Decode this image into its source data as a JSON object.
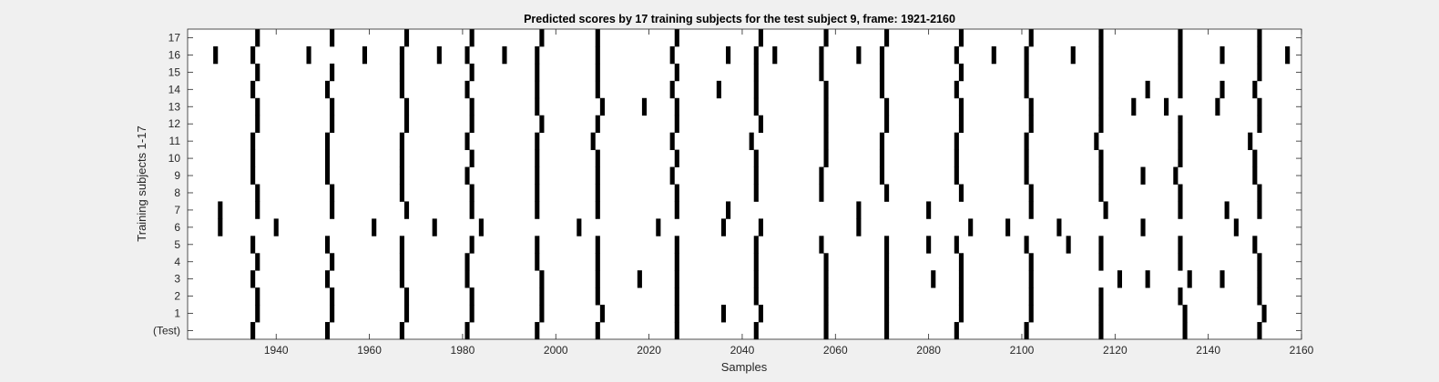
{
  "chart_data": {
    "type": "heatmap",
    "title": "Predicted scores by 17 training subjects for the test subject 9, frame: 1921-2160",
    "xlabel": "Samples",
    "ylabel": "Training subjects 1-17",
    "xlim": [
      1921,
      2160
    ],
    "xticks": [
      1940,
      1960,
      1980,
      2000,
      2020,
      2040,
      2060,
      2080,
      2100,
      2120,
      2140,
      2160
    ],
    "yticklabels": [
      "(Test)",
      "1",
      "2",
      "3",
      "4",
      "5",
      "6",
      "7",
      "8",
      "9",
      "10",
      "11",
      "12",
      "13",
      "14",
      "15",
      "16",
      "17"
    ],
    "grid": false,
    "colors": {
      "background": "#ffffff",
      "mark": "#000000",
      "figure": "#f0f0f0"
    },
    "rows": [
      {
        "label": "(Test)",
        "x": [
          1935,
          1951,
          1967,
          1981,
          1996,
          2009,
          2026,
          2043,
          2058,
          2071,
          2086,
          2101,
          2117,
          2135,
          2151
        ]
      },
      {
        "label": "1",
        "x": [
          1936,
          1952,
          1968,
          1982,
          1997,
          2010,
          2026,
          2036,
          2044,
          2058,
          2071,
          2087,
          2102,
          2117,
          2135,
          2152
        ]
      },
      {
        "label": "2",
        "x": [
          1936,
          1952,
          1968,
          1982,
          1997,
          2009,
          2026,
          2043,
          2058,
          2071,
          2087,
          2102,
          2117,
          2134,
          2151
        ]
      },
      {
        "label": "3",
        "x": [
          1935,
          1951,
          1967,
          1981,
          1997,
          2009,
          2018,
          2026,
          2043,
          2058,
          2071,
          2081,
          2087,
          2102,
          2121,
          2127,
          2136,
          2143,
          2151
        ]
      },
      {
        "label": "4",
        "x": [
          1936,
          1952,
          1967,
          1981,
          1996,
          2009,
          2026,
          2043,
          2058,
          2071,
          2087,
          2102,
          2117,
          2134,
          2151
        ]
      },
      {
        "label": "5",
        "x": [
          1935,
          1951,
          1967,
          1982,
          1996,
          2009,
          2026,
          2043,
          2057,
          2071,
          2080,
          2086,
          2101,
          2110,
          2117,
          2134,
          2150
        ]
      },
      {
        "label": "6",
        "x": [
          1928,
          1940,
          1961,
          1974,
          1984,
          2005,
          2022,
          2036,
          2044,
          2065,
          2089,
          2097,
          2108,
          2126,
          2146
        ]
      },
      {
        "label": "7",
        "x": [
          1928,
          1936,
          1952,
          1968,
          1982,
          1996,
          2009,
          2026,
          2037,
          2065,
          2080,
          2102,
          2118,
          2134,
          2144,
          2151
        ]
      },
      {
        "label": "8",
        "x": [
          1936,
          1952,
          1967,
          1982,
          1996,
          2009,
          2026,
          2043,
          2057,
          2071,
          2087,
          2102,
          2117,
          2134,
          2151
        ]
      },
      {
        "label": "9",
        "x": [
          1935,
          1951,
          1967,
          1981,
          1996,
          2009,
          2025,
          2043,
          2057,
          2070,
          2086,
          2101,
          2117,
          2126,
          2133,
          2150
        ]
      },
      {
        "label": "10",
        "x": [
          1935,
          1951,
          1967,
          1982,
          1996,
          2009,
          2026,
          2043,
          2058,
          2070,
          2086,
          2101,
          2117,
          2134,
          2150
        ]
      },
      {
        "label": "11",
        "x": [
          1935,
          1951,
          1967,
          1981,
          1996,
          2008,
          2025,
          2042,
          2058,
          2070,
          2086,
          2101,
          2116,
          2134,
          2149
        ]
      },
      {
        "label": "12",
        "x": [
          1936,
          1952,
          1968,
          1982,
          1997,
          2009,
          2026,
          2044,
          2058,
          2071,
          2087,
          2102,
          2117,
          2134,
          2151
        ]
      },
      {
        "label": "13",
        "x": [
          1936,
          1952,
          1968,
          1982,
          1996,
          2010,
          2019,
          2026,
          2043,
          2058,
          2071,
          2087,
          2102,
          2117,
          2124,
          2131,
          2142,
          2151
        ]
      },
      {
        "label": "14",
        "x": [
          1935,
          1951,
          1967,
          1981,
          1996,
          2009,
          2025,
          2035,
          2043,
          2058,
          2070,
          2086,
          2101,
          2117,
          2127,
          2134,
          2143,
          2150
        ]
      },
      {
        "label": "15",
        "x": [
          1936,
          1952,
          1967,
          1982,
          1996,
          2009,
          2026,
          2043,
          2057,
          2070,
          2087,
          2101,
          2117,
          2134,
          2151
        ]
      },
      {
        "label": "16",
        "x": [
          1927,
          1935,
          1947,
          1959,
          1967,
          1975,
          1981,
          1989,
          1996,
          2009,
          2025,
          2037,
          2043,
          2047,
          2057,
          2065,
          2070,
          2086,
          2094,
          2101,
          2111,
          2117,
          2134,
          2143,
          2151,
          2157
        ]
      },
      {
        "label": "17",
        "x": [
          1936,
          1952,
          1968,
          1982,
          1997,
          2009,
          2026,
          2044,
          2058,
          2071,
          2087,
          2102,
          2117,
          2134,
          2151
        ]
      }
    ]
  }
}
